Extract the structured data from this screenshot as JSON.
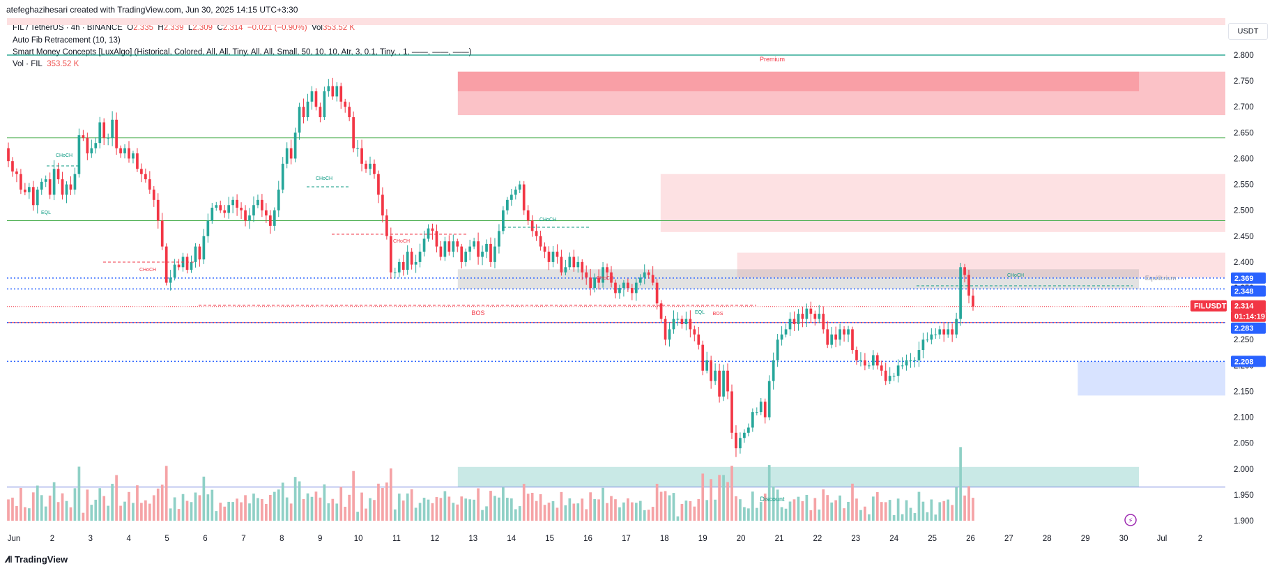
{
  "header": {
    "attribution": "atefeghazihesari created with TradingView.com, Jun 30, 2025 14:15 UTC+3:30"
  },
  "legend": {
    "symbol_line": "FIL / TetherUS · 4h · BINANCE",
    "open_label": "O",
    "open": "2.335",
    "high_label": "H",
    "high": "2.339",
    "low_label": "L",
    "low": "2.309",
    "close_label": "C",
    "close": "2.314",
    "change": "−0.021 (−0.90%)",
    "vol_label": "Vol",
    "vol": "353.52 K",
    "indicator1": "Auto Fib Retracement (10, 13)",
    "indicator2": "Smart Money Concepts [LuxAlgo] (Historical, Colored, All, All, Tiny, All, All, Small, 50, 10, 10, Atr, 3, 0.1, Tiny, , 1, ——, ——, ——)",
    "vol_line_label": "Vol · FIL",
    "vol_line_value": "353.52 K"
  },
  "currency": "USDT",
  "brand": "TradingView",
  "colors": {
    "up": "#26a69a",
    "down": "#f23645",
    "vol_up": "#8fd0c6",
    "vol_down": "#f5a3a6",
    "fib_green": "#4caf50",
    "dotted_blue": "#2962ff",
    "premium_zone": "#f23645",
    "discount_zone": "#26a69a",
    "support_zone": "#2962ff"
  },
  "chart_data": {
    "type": "candlestick",
    "symbol": "FILUSDT",
    "interval": "4h",
    "y_ticks": [
      "2.800",
      "2.750",
      "2.700",
      "2.650",
      "2.600",
      "2.550",
      "2.500",
      "2.450",
      "2.400",
      "2.350",
      "2.300",
      "2.250",
      "2.200",
      "2.150",
      "2.100",
      "2.050",
      "2.000",
      "1.950",
      "1.900"
    ],
    "x_ticks": [
      "Jun",
      "2",
      "3",
      "4",
      "5",
      "6",
      "7",
      "8",
      "9",
      "10",
      "11",
      "12",
      "13",
      "14",
      "15",
      "16",
      "17",
      "18",
      "19",
      "20",
      "21",
      "22",
      "23",
      "24",
      "25",
      "26",
      "27",
      "28",
      "29",
      "30",
      "Jul",
      "2"
    ],
    "price_labels": [
      {
        "text": "2.369",
        "price": 2.369,
        "color": "#2962ff"
      },
      {
        "text": "2.348",
        "price": 2.348,
        "color": "#2962ff"
      },
      {
        "text": "FILUSDT",
        "price": 2.314,
        "color": "#f23645"
      },
      {
        "text": "2.314",
        "price": 2.314,
        "color": "#f23645"
      },
      {
        "text": "01:14:19",
        "price": 2.314,
        "color": "#f23645"
      },
      {
        "text": "2.283",
        "price": 2.283,
        "color": "#2962ff"
      },
      {
        "text": "2.208",
        "price": 2.208,
        "color": "#2962ff"
      }
    ],
    "zone_labels": {
      "premium": "Premium",
      "discount": "Discount",
      "equilibrium": "Equilibrium"
    },
    "structure_labels": [
      "CHoCH",
      "CHoCH",
      "CHoCH",
      "CHoCH",
      "CHoCH",
      "CHoCH",
      "CHoCH",
      "BOS",
      "BOS",
      "EQL",
      "EQL"
    ],
    "closes": [
      2.595,
      2.575,
      2.57,
      2.54,
      2.535,
      2.545,
      2.51,
      2.54,
      2.555,
      2.56,
      2.53,
      2.58,
      2.56,
      2.53,
      2.55,
      2.54,
      2.57,
      2.645,
      2.64,
      2.61,
      2.62,
      2.63,
      2.67,
      2.64,
      2.64,
      2.675,
      2.62,
      2.61,
      2.62,
      2.6,
      2.61,
      2.58,
      2.57,
      2.56,
      2.54,
      2.52,
      2.48,
      2.43,
      2.36,
      2.37,
      2.395,
      2.39,
      2.41,
      2.385,
      2.4,
      2.43,
      2.405,
      2.45,
      2.48,
      2.505,
      2.51,
      2.5,
      2.495,
      2.51,
      2.52,
      2.505,
      2.5,
      2.48,
      2.49,
      2.51,
      2.52,
      2.5,
      2.49,
      2.47,
      2.5,
      2.54,
      2.59,
      2.62,
      2.6,
      2.65,
      2.7,
      2.68,
      2.71,
      2.73,
      2.7,
      2.68,
      2.73,
      2.74,
      2.72,
      2.74,
      2.71,
      2.7,
      2.68,
      2.62,
      2.62,
      2.59,
      2.58,
      2.59,
      2.57,
      2.53,
      2.49,
      2.45,
      2.38,
      2.38,
      2.4,
      2.385,
      2.42,
      2.395,
      2.4,
      2.42,
      2.445,
      2.465,
      2.46,
      2.43,
      2.41,
      2.44,
      2.42,
      2.44,
      2.43,
      2.4,
      2.42,
      2.43,
      2.44,
      2.41,
      2.42,
      2.435,
      2.4,
      2.43,
      2.46,
      2.5,
      2.52,
      2.53,
      2.54,
      2.55,
      2.5,
      2.48,
      2.46,
      2.45,
      2.43,
      2.42,
      2.4,
      2.42,
      2.41,
      2.38,
      2.39,
      2.41,
      2.39,
      2.4,
      2.38,
      2.37,
      2.35,
      2.37,
      2.36,
      2.39,
      2.38,
      2.36,
      2.34,
      2.35,
      2.36,
      2.35,
      2.34,
      2.36,
      2.37,
      2.38,
      2.375,
      2.36,
      2.32,
      2.29,
      2.25,
      2.27,
      2.29,
      2.29,
      2.28,
      2.29,
      2.27,
      2.26,
      2.24,
      2.19,
      2.21,
      2.17,
      2.19,
      2.14,
      2.19,
      2.15,
      2.07,
      2.04,
      2.06,
      2.07,
      2.08,
      2.11,
      2.11,
      2.13,
      2.1,
      2.17,
      2.21,
      2.25,
      2.26,
      2.27,
      2.29,
      2.28,
      2.3,
      2.29,
      2.31,
      2.3,
      2.29,
      2.3,
      2.27,
      2.24,
      2.26,
      2.25,
      2.27,
      2.26,
      2.27,
      2.23,
      2.21,
      2.21,
      2.2,
      2.2,
      2.22,
      2.2,
      2.19,
      2.17,
      2.18,
      2.18,
      2.2,
      2.2,
      2.21,
      2.21,
      2.21,
      2.23,
      2.25,
      2.25,
      2.26,
      2.26,
      2.27,
      2.26,
      2.27,
      2.26,
      2.29,
      2.39,
      2.375,
      2.335,
      2.314
    ],
    "opens_from_prev_close": true
  }
}
